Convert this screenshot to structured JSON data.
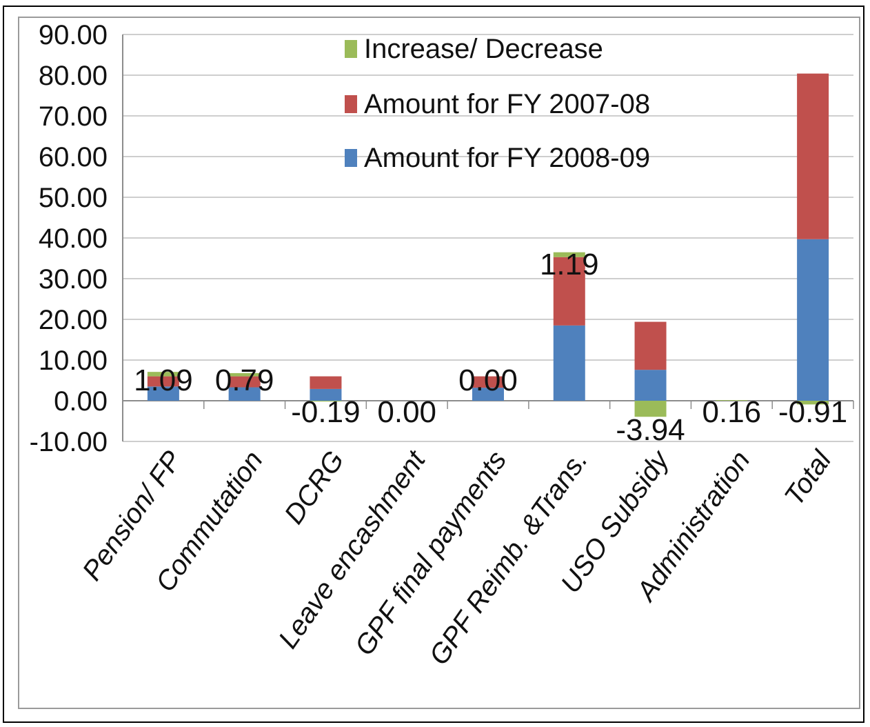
{
  "chart_data": {
    "type": "bar",
    "stacked": true,
    "categories": [
      "Pension/ FP",
      "Commutation",
      "DCRG",
      "Leave encashment",
      "GPF final payments",
      "GPF Reimb. &Trans.",
      "USO Subsidy",
      "Administration",
      "Total"
    ],
    "series": [
      {
        "name": "Amount for FY 2008-09",
        "color": "#4f81bd",
        "values": [
          3.5,
          3.3,
          2.9,
          0.0,
          3.2,
          18.5,
          7.6,
          0.0,
          39.7
        ]
      },
      {
        "name": "Amount for FY 2007-08",
        "color": "#c0504d",
        "values": [
          2.5,
          2.7,
          3.1,
          0.0,
          2.8,
          16.8,
          11.8,
          0.0,
          40.7
        ]
      },
      {
        "name": "Increase/ Decrease",
        "color": "#9bbb59",
        "values": [
          1.09,
          0.79,
          -0.19,
          0.0,
          0.0,
          1.19,
          -3.94,
          0.16,
          -0.91
        ]
      }
    ],
    "data_labels": [
      "1.09",
      "0.79",
      "-0.19",
      "0.00",
      "0.00",
      "1.19",
      "-3.94",
      "0.16",
      "-0.91"
    ],
    "yticks": [
      "90.00",
      "80.00",
      "70.00",
      "60.00",
      "50.00",
      "40.00",
      "30.00",
      "20.00",
      "10.00",
      "0.00",
      "-10.00"
    ],
    "ylim": [
      -10,
      90
    ],
    "grid": true,
    "legend_position": "top-center",
    "legend_order": [
      "Increase/ Decrease",
      "Amount for FY 2007-08",
      "Amount for FY 2008-09"
    ]
  }
}
